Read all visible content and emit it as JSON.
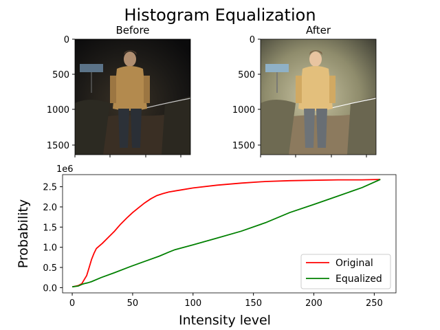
{
  "figure": {
    "suptitle": "Histogram Equalization",
    "before_title": "Before",
    "after_title": "After"
  },
  "images": {
    "y_ticks": [
      "0",
      "500",
      "1000",
      "1500"
    ]
  },
  "chart_data": {
    "type": "line",
    "title": "",
    "xlabel": "Intensity level",
    "ylabel": "Probability",
    "y_offset_text": "1e6",
    "xlim": [
      -8,
      268
    ],
    "ylim": [
      -0.13,
      2.8
    ],
    "x_ticks": [
      0,
      50,
      100,
      150,
      200,
      250
    ],
    "y_ticks": [
      0.0,
      0.5,
      1.0,
      1.5,
      2.0,
      2.5
    ],
    "y_tick_labels": [
      "0.0",
      "0.5",
      "1.0",
      "1.5",
      "2.0",
      "2.5"
    ],
    "grid": false,
    "legend_position": "lower right",
    "series": [
      {
        "name": "Original",
        "color": "#ff0000",
        "points": [
          [
            0,
            0.02
          ],
          [
            5,
            0.05
          ],
          [
            8,
            0.1
          ],
          [
            10,
            0.2
          ],
          [
            12,
            0.3
          ],
          [
            14,
            0.5
          ],
          [
            16,
            0.7
          ],
          [
            18,
            0.85
          ],
          [
            20,
            0.97
          ],
          [
            25,
            1.1
          ],
          [
            30,
            1.25
          ],
          [
            35,
            1.4
          ],
          [
            40,
            1.57
          ],
          [
            45,
            1.72
          ],
          [
            50,
            1.86
          ],
          [
            55,
            1.98
          ],
          [
            60,
            2.1
          ],
          [
            65,
            2.2
          ],
          [
            70,
            2.28
          ],
          [
            75,
            2.33
          ],
          [
            80,
            2.37
          ],
          [
            90,
            2.42
          ],
          [
            100,
            2.47
          ],
          [
            120,
            2.54
          ],
          [
            140,
            2.59
          ],
          [
            160,
            2.63
          ],
          [
            180,
            2.65
          ],
          [
            200,
            2.66
          ],
          [
            220,
            2.67
          ],
          [
            240,
            2.67
          ],
          [
            255,
            2.68
          ]
        ]
      },
      {
        "name": "Equalized",
        "color": "#008000",
        "points": [
          [
            0,
            0.02
          ],
          [
            5,
            0.04
          ],
          [
            8,
            0.08
          ],
          [
            10,
            0.1
          ],
          [
            13,
            0.12
          ],
          [
            16,
            0.15
          ],
          [
            24,
            0.25
          ],
          [
            35,
            0.37
          ],
          [
            48,
            0.52
          ],
          [
            60,
            0.65
          ],
          [
            72,
            0.78
          ],
          [
            80,
            0.88
          ],
          [
            85,
            0.94
          ],
          [
            100,
            1.06
          ],
          [
            120,
            1.23
          ],
          [
            140,
            1.4
          ],
          [
            160,
            1.61
          ],
          [
            180,
            1.86
          ],
          [
            200,
            2.06
          ],
          [
            220,
            2.27
          ],
          [
            240,
            2.48
          ],
          [
            255,
            2.68
          ]
        ]
      }
    ]
  }
}
